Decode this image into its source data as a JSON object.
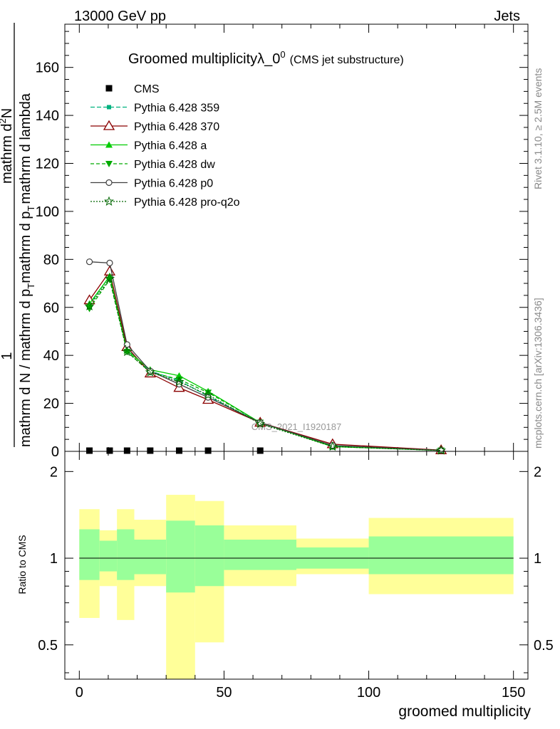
{
  "header": {
    "left": "13000 GeV pp",
    "right": "Jets"
  },
  "side_labels": {
    "rivet": "Rivet 3.1.10, ≥ 2.5M events",
    "source": "mcplots.cern.ch [arXiv:1306.3436]"
  },
  "watermark": "CMS_2021_I1920187",
  "chart_data": [
    {
      "type": "line",
      "title": "Groomed multiplicityλ_0",
      "title_sup": "0",
      "subtitle": "(CMS jet substructure)",
      "ylabel": "1 / mathrm d N / mathrm d p_T mathrm d p_T mathrm d lambda mathrm d^2N",
      "ylabel_parts": {
        "numerator_left": "1",
        "denominator_left": "mathrm d N / mathrm d p",
        "sub_t": "T",
        "numerator_right": "mathrm d",
        "sup_2": "2",
        "numerator_right_end": "N",
        "denominator_right": "mathrm d p",
        "denominator_right_end": "mathrm d lambda"
      },
      "xlim": [
        -5,
        155
      ],
      "ylim": [
        0,
        178
      ],
      "yticks": [
        0,
        20,
        40,
        60,
        80,
        100,
        120,
        140,
        160
      ],
      "legend_position": "top-left",
      "cms": {
        "name": "CMS",
        "x": [
          3.5,
          10.5,
          16.5,
          24.5,
          34.5,
          44.5,
          62.5
        ],
        "y": [
          0.3,
          0.3,
          0.3,
          0.3,
          0.3,
          0.3,
          0.3
        ]
      },
      "series": [
        {
          "name": "Pythia 6.428 359",
          "color": "#00b27f",
          "dash": "6,3",
          "marker": "square-small",
          "x": [
            3.5,
            10.5,
            16.5,
            24.5,
            34.5,
            44.5,
            62.5,
            87.5,
            125
          ],
          "y": [
            61,
            73,
            42.5,
            33.5,
            29.5,
            23,
            12,
            2.2,
            0.4
          ]
        },
        {
          "name": "Pythia 6.428 370",
          "color": "#8b0000",
          "dash": "",
          "marker": "triangle-open",
          "x": [
            3.5,
            10.5,
            16.5,
            24.5,
            34.5,
            44.5,
            62.5,
            87.5,
            125
          ],
          "y": [
            63,
            75,
            43.5,
            32.5,
            26.5,
            21.5,
            12,
            3,
            0.5
          ]
        },
        {
          "name": "Pythia 6.428 a",
          "color": "#00cc00",
          "dash": "",
          "marker": "triangle-filled",
          "x": [
            3.5,
            10.5,
            16.5,
            24.5,
            34.5,
            44.5,
            62.5,
            87.5,
            125
          ],
          "y": [
            61.5,
            73,
            42,
            34,
            31.5,
            25,
            12,
            2,
            0.4
          ]
        },
        {
          "name": "Pythia 6.428 dw",
          "color": "#00aa00",
          "dash": "5,3",
          "marker": "triangle-down",
          "x": [
            3.5,
            10.5,
            16.5,
            24.5,
            34.5,
            44.5,
            62.5,
            87.5,
            125
          ],
          "y": [
            59.5,
            71.5,
            41.5,
            33,
            30,
            24.5,
            12,
            2,
            0.4
          ]
        },
        {
          "name": "Pythia 6.428 p0",
          "color": "#404040",
          "dash": "",
          "marker": "circle-open",
          "x": [
            3.5,
            10.5,
            16.5,
            24.5,
            34.5,
            44.5,
            62.5,
            87.5,
            125
          ],
          "y": [
            79,
            78.5,
            44.5,
            33.5,
            28,
            22.5,
            12,
            2.5,
            0.4
          ]
        },
        {
          "name": "Pythia 6.428 pro-q2o",
          "color": "#006600",
          "dash": "2,2",
          "marker": "star-open",
          "x": [
            3.5,
            10.5,
            16.5,
            24.5,
            34.5,
            44.5,
            62.5,
            87.5,
            125
          ],
          "y": [
            60.5,
            72,
            41.5,
            33,
            29,
            23.5,
            11.5,
            2,
            0.4
          ]
        }
      ]
    },
    {
      "type": "area",
      "ylabel": "Ratio to CMS",
      "xlabel": "groomed multiplicity",
      "xlim": [
        -5,
        155
      ],
      "ylim": [
        0.38,
        2.35
      ],
      "log_y": true,
      "xticks": [
        0,
        50,
        100,
        150
      ],
      "yticks": [
        0.5,
        1,
        2
      ],
      "reference": 1,
      "bins": [
        {
          "lo": 0,
          "hi": 7,
          "inner": [
            0.84,
            1.26
          ],
          "outer": [
            0.62,
            1.48
          ]
        },
        {
          "lo": 7,
          "hi": 13,
          "inner": [
            0.9,
            1.15
          ],
          "outer": [
            0.8,
            1.25
          ]
        },
        {
          "lo": 13,
          "hi": 19,
          "inner": [
            0.84,
            1.26
          ],
          "outer": [
            0.61,
            1.48
          ]
        },
        {
          "lo": 19,
          "hi": 30,
          "inner": [
            0.88,
            1.16
          ],
          "outer": [
            0.8,
            1.36
          ]
        },
        {
          "lo": 30,
          "hi": 40,
          "inner": [
            0.76,
            1.35
          ],
          "outer": [
            0.38,
            1.66
          ]
        },
        {
          "lo": 40,
          "hi": 50,
          "inner": [
            0.8,
            1.3
          ],
          "outer": [
            0.51,
            1.58
          ]
        },
        {
          "lo": 50,
          "hi": 75,
          "inner": [
            0.91,
            1.16
          ],
          "outer": [
            0.8,
            1.3
          ]
        },
        {
          "lo": 75,
          "hi": 100,
          "inner": [
            0.92,
            1.09
          ],
          "outer": [
            0.88,
            1.17
          ]
        },
        {
          "lo": 100,
          "hi": 150,
          "inner": [
            0.88,
            1.19
          ],
          "outer": [
            0.75,
            1.38
          ]
        }
      ],
      "colors": {
        "inner": "#99ff99",
        "outer": "#ffff99"
      }
    }
  ]
}
